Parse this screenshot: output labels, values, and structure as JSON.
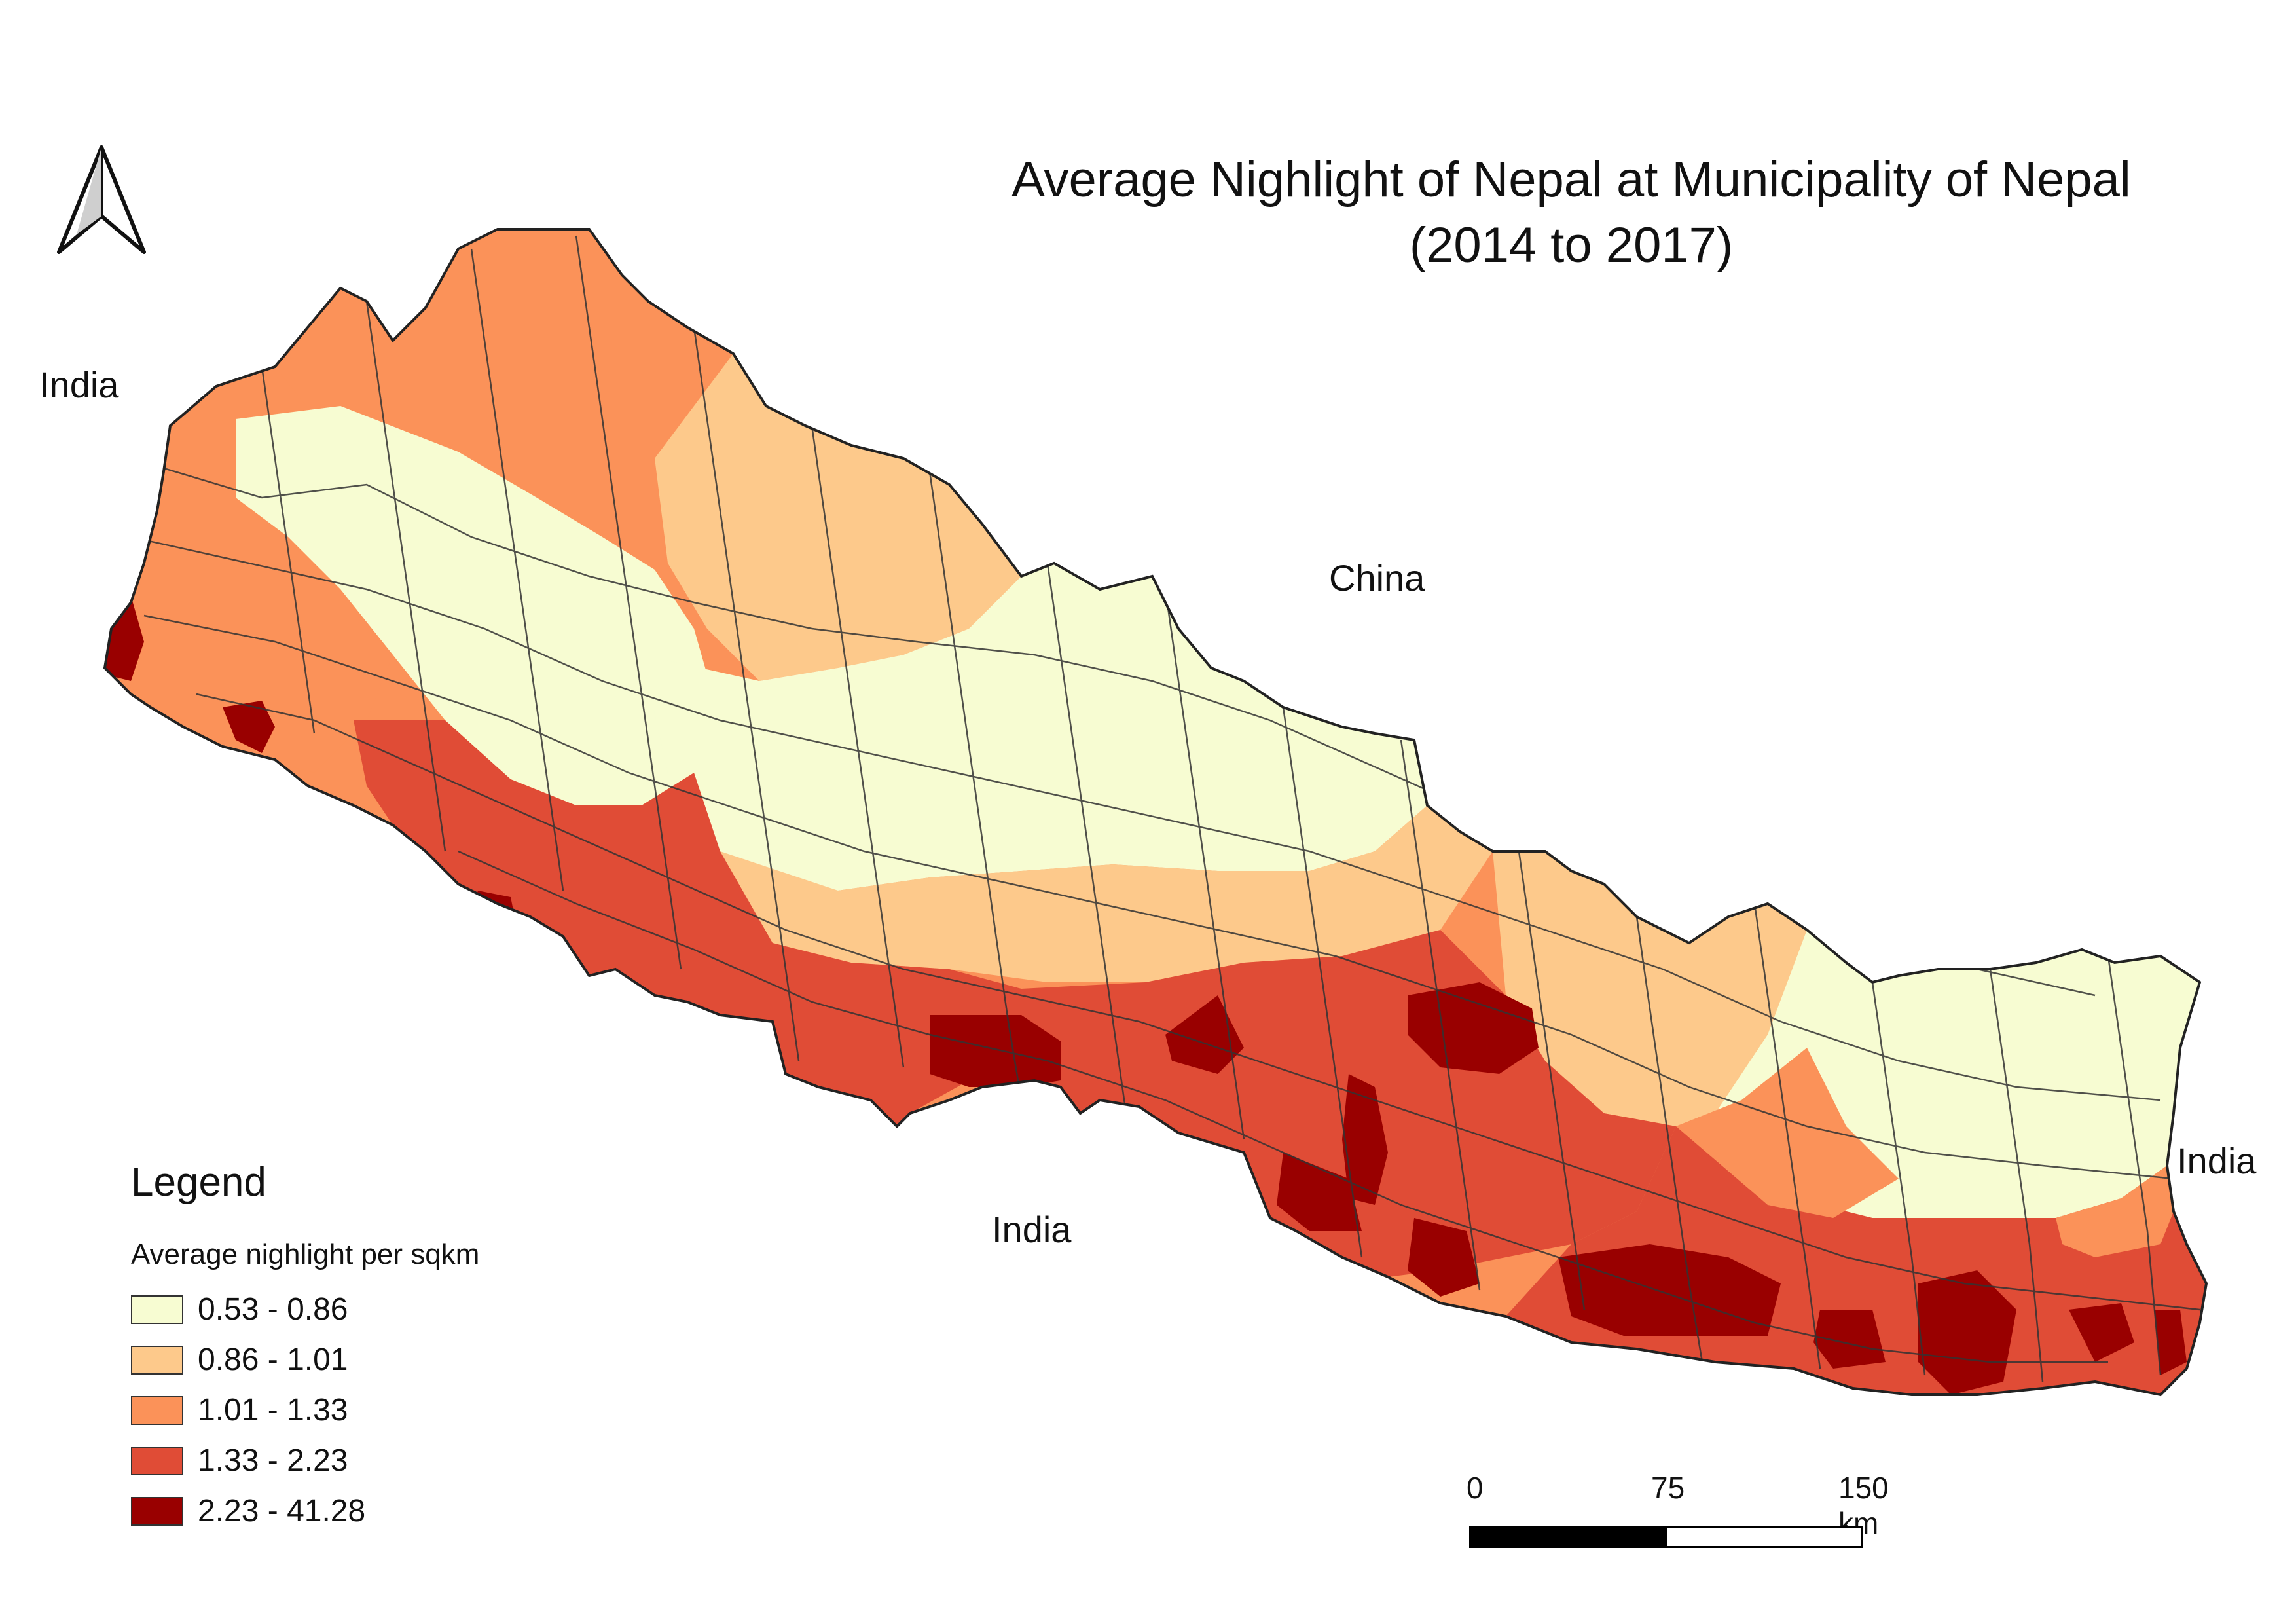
{
  "title": {
    "line1": "Average Nighlight of Nepal at Municipality of Nepal",
    "line2": "(2014 to 2017)"
  },
  "labels": {
    "india_west": "India",
    "china": "China",
    "india_south": "India",
    "india_east": "India"
  },
  "north_arrow": {
    "icon": "north-arrow-icon"
  },
  "legend": {
    "title": "Legend",
    "subtitle": "Average nighlight per sqkm",
    "classes": [
      {
        "label": "0.53 - 0.86",
        "color": "#f7fcd2"
      },
      {
        "label": "0.86 - 1.01",
        "color": "#fdc98b"
      },
      {
        "label": "1.01 - 1.33",
        "color": "#fb9259"
      },
      {
        "label": "1.33 - 2.23",
        "color": "#e04c36"
      },
      {
        "label": "2.23 - 41.28",
        "color": "#990000"
      }
    ]
  },
  "scalebar": {
    "labels": [
      "0",
      "75",
      "150 km"
    ]
  }
}
